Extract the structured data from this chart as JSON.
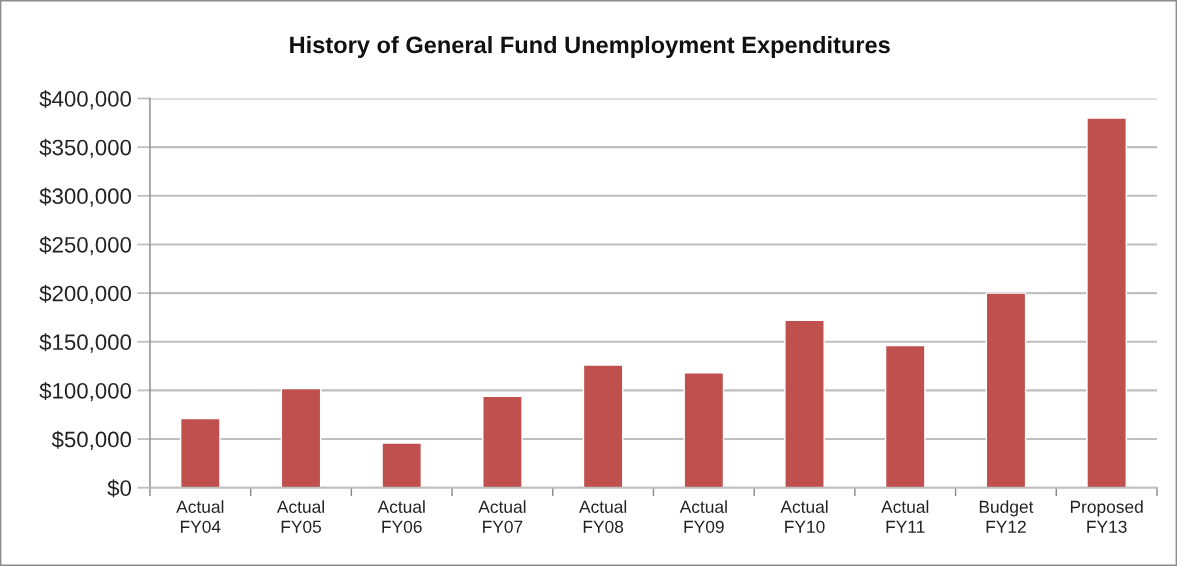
{
  "chart_data": {
    "type": "bar",
    "title": "History of General Fund Unemployment Expenditures",
    "categories": [
      "Actual FY04",
      "Actual FY05",
      "Actual FY06",
      "Actual FY07",
      "Actual FY08",
      "Actual FY09",
      "Actual FY10",
      "Actual FY11",
      "Budget FY12",
      "Proposed FY13"
    ],
    "values": [
      71000,
      102000,
      46000,
      94000,
      126000,
      118000,
      172000,
      146000,
      200000,
      380000
    ],
    "color": "#c0504d",
    "ylim": [
      0,
      400000
    ],
    "yticks": [
      {
        "value": 0,
        "label": "$0"
      },
      {
        "value": 50000,
        "label": "$50,000"
      },
      {
        "value": 100000,
        "label": "$100,000"
      },
      {
        "value": 150000,
        "label": "$150,000"
      },
      {
        "value": 200000,
        "label": "$200,000"
      },
      {
        "value": 250000,
        "label": "$250,000"
      },
      {
        "value": 300000,
        "label": "$300,000"
      },
      {
        "value": 350000,
        "label": "$350,000"
      },
      {
        "value": 400000,
        "label": "$400,000"
      }
    ],
    "grid": "y"
  }
}
